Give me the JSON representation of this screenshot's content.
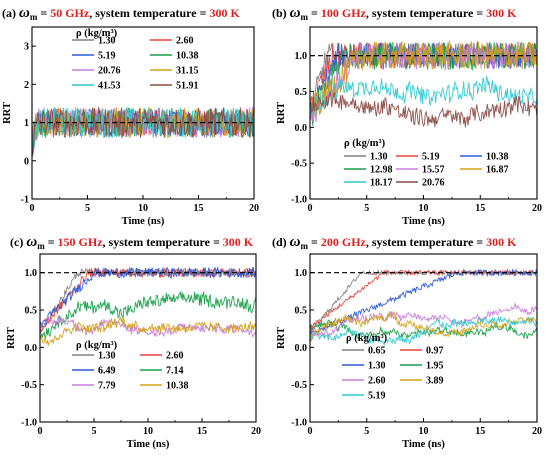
{
  "chart_data": [
    {
      "type": "line",
      "panel": "(a)",
      "title": {
        "prefix": "(a) ",
        "omega": "ω",
        "sub": "m",
        "eq": " = ",
        "freq": "50 GHz",
        "mid": ", system temperature = ",
        "temp": "300 K"
      },
      "xlabel": "Time (ns)",
      "ylabel": "RRT",
      "xlim": [
        0,
        20
      ],
      "ylim": [
        -1,
        3.5
      ],
      "xticks": [
        "0",
        "5",
        "10",
        "15",
        "20"
      ],
      "yticks": [
        "-1",
        "0",
        "1",
        "2",
        "3"
      ],
      "ytick_values": [
        -1,
        0,
        1,
        2,
        3
      ],
      "reference_line": 1.0,
      "legend_title": "ρ (kg/m³)",
      "legend_placement": "top",
      "series": [
        {
          "name": "1.30",
          "color": "#808080",
          "rise_ns": 0.5,
          "plateau": 1.0,
          "noise": 0.35
        },
        {
          "name": "2.60",
          "color": "#e8453c",
          "rise_ns": 0.5,
          "plateau": 1.0,
          "noise": 0.35
        },
        {
          "name": "5.19",
          "color": "#2e5bd6",
          "rise_ns": 0.5,
          "plateau": 1.0,
          "noise": 0.35
        },
        {
          "name": "10.38",
          "color": "#18a04a",
          "rise_ns": 0.5,
          "plateau": 1.0,
          "noise": 0.4
        },
        {
          "name": "20.76",
          "color": "#c77dd9",
          "rise_ns": 0.5,
          "plateau": 1.0,
          "noise": 0.4
        },
        {
          "name": "31.15",
          "color": "#d4a017",
          "rise_ns": 0.5,
          "plateau": 1.0,
          "noise": 0.4
        },
        {
          "name": "41.53",
          "color": "#2ec9d0",
          "rise_ns": 0.5,
          "plateau": 1.0,
          "noise": 0.4
        },
        {
          "name": "51.91",
          "color": "#8b4a44",
          "rise_ns": 0.5,
          "plateau": 1.0,
          "noise": 0.4
        }
      ]
    },
    {
      "type": "line",
      "panel": "(b)",
      "title": {
        "prefix": "(b) ",
        "omega": "ω",
        "sub": "m",
        "eq": " = ",
        "freq": "100 GHz",
        "mid": ", system temperature = ",
        "temp": "300 K"
      },
      "xlabel": "Time (ns)",
      "ylabel": "RRT",
      "xlim": [
        0,
        20
      ],
      "ylim": [
        -1.0,
        1.4
      ],
      "xticks": [
        "0",
        "5",
        "10",
        "15",
        "20"
      ],
      "yticks": [
        "-1.0",
        "-0.5",
        "0.0",
        "0.5",
        "1.0"
      ],
      "ytick_values": [
        -1.0,
        -0.5,
        0.0,
        0.5,
        1.0
      ],
      "reference_line": 1.0,
      "legend_title": "ρ (kg/m³)",
      "legend_placement": "bottom",
      "series": [
        {
          "name": "1.30",
          "color": "#808080",
          "rise_ns": 1.5,
          "plateau": 1.0,
          "noise": 0.18
        },
        {
          "name": "5.19",
          "color": "#e8453c",
          "rise_ns": 2.0,
          "plateau": 1.0,
          "noise": 0.18
        },
        {
          "name": "10.38",
          "color": "#2e5bd6",
          "rise_ns": 2.5,
          "plateau": 1.0,
          "noise": 0.18
        },
        {
          "name": "12.98",
          "color": "#18a04a",
          "rise_ns": 3.0,
          "plateau": 1.0,
          "noise": 0.2
        },
        {
          "name": "15.57",
          "color": "#c77dd9",
          "rise_ns": 4.0,
          "plateau": 1.0,
          "noise": 0.2
        },
        {
          "name": "16.87",
          "color": "#d4a017",
          "rise_ns": 4.5,
          "plateau": 1.0,
          "noise": 0.2
        },
        {
          "name": "18.17",
          "color": "#2ec9d0",
          "rise_ns": 20,
          "plateau": 0.55,
          "noise": 0.12
        },
        {
          "name": "20.76",
          "color": "#8b4a44",
          "rise_ns": 20,
          "plateau": 0.25,
          "noise": 0.12
        }
      ]
    },
    {
      "type": "line",
      "panel": "(c)",
      "title": {
        "prefix": "(c) ",
        "omega": "ω",
        "sub": "m",
        "eq": " = ",
        "freq": "150 GHz",
        "mid": ", system temperature = ",
        "temp": "300 K"
      },
      "xlabel": "Time (ns)",
      "ylabel": "RRT",
      "xlim": [
        0,
        20
      ],
      "ylim": [
        -1.0,
        1.25
      ],
      "xticks": [
        "0",
        "5",
        "10",
        "15",
        "20"
      ],
      "yticks": [
        "-1.0",
        "-0.5",
        "0.0",
        "0.5",
        "1.0"
      ],
      "ytick_values": [
        -1.0,
        -0.5,
        0.0,
        0.5,
        1.0
      ],
      "reference_line": 1.0,
      "legend_title": "ρ (kg/m³)",
      "legend_placement": "bottom",
      "series": [
        {
          "name": "1.30",
          "color": "#808080",
          "rise_ns": 3.5,
          "plateau": 1.0,
          "noise": 0.05
        },
        {
          "name": "2.60",
          "color": "#e8453c",
          "rise_ns": 4.5,
          "plateau": 1.0,
          "noise": 0.06
        },
        {
          "name": "6.49",
          "color": "#2e5bd6",
          "rise_ns": 5.0,
          "plateau": 1.0,
          "noise": 0.07
        },
        {
          "name": "7.14",
          "color": "#18a04a",
          "rise_ns": 20,
          "plateau": 0.55,
          "noise": 0.08
        },
        {
          "name": "7.79",
          "color": "#c77dd9",
          "rise_ns": 20,
          "plateau": 0.3,
          "noise": 0.05
        },
        {
          "name": "10.38",
          "color": "#d4a017",
          "rise_ns": 20,
          "plateau": 0.4,
          "noise": 0.06
        }
      ]
    },
    {
      "type": "line",
      "panel": "(d)",
      "title": {
        "prefix": "(d) ",
        "omega": "ω",
        "sub": "m",
        "eq": " = ",
        "freq": "200 GHz",
        "mid": ", system temperature = ",
        "temp": "300 K"
      },
      "xlabel": "Time (ns)",
      "ylabel": "RRT",
      "xlim": [
        0,
        20
      ],
      "ylim": [
        -1.0,
        1.25
      ],
      "xticks": [
        "0",
        "5",
        "10",
        "15",
        "20"
      ],
      "yticks": [
        "-1.0",
        "-0.5",
        "0.0",
        "0.5",
        "1.0"
      ],
      "ytick_values": [
        -1.0,
        -0.5,
        0.0,
        0.5,
        1.0
      ],
      "reference_line": 1.0,
      "legend_title": "ρ (kg/m³)",
      "legend_placement": "bottom",
      "series": [
        {
          "name": "0.65",
          "color": "#808080",
          "rise_ns": 4.5,
          "plateau": 1.0,
          "noise": 0.03
        },
        {
          "name": "0.97",
          "color": "#e8453c",
          "rise_ns": 6.5,
          "plateau": 1.0,
          "noise": 0.03
        },
        {
          "name": "1.30",
          "color": "#2e5bd6",
          "rise_ns": 13.0,
          "plateau": 1.0,
          "noise": 0.04
        },
        {
          "name": "1.95",
          "color": "#18a04a",
          "rise_ns": 20,
          "plateau": 0.3,
          "noise": 0.04
        },
        {
          "name": "2.60",
          "color": "#c77dd9",
          "rise_ns": 20,
          "plateau": 0.42,
          "noise": 0.04
        },
        {
          "name": "3.89",
          "color": "#d4a017",
          "rise_ns": 20,
          "plateau": 0.33,
          "noise": 0.04
        },
        {
          "name": "5.19",
          "color": "#2ec9d0",
          "rise_ns": 20,
          "plateau": 0.22,
          "noise": 0.04
        }
      ]
    }
  ]
}
